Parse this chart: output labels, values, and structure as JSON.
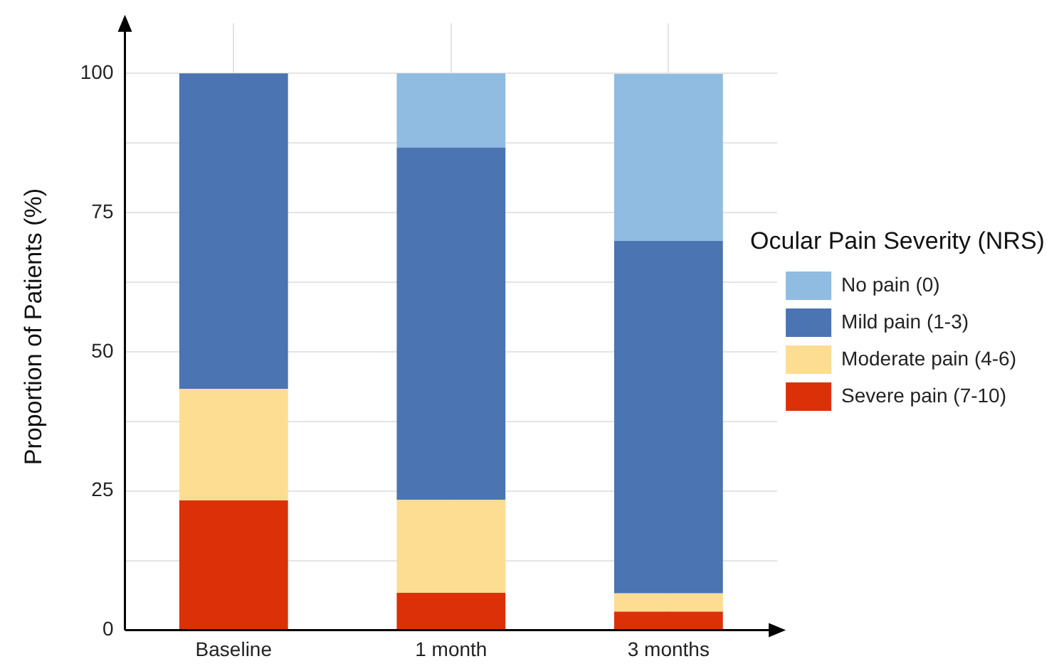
{
  "chart_data": {
    "type": "bar",
    "stacked": true,
    "ylabel": "Proportion of Patients (%)",
    "legend_title": "Ocular Pain Severity (NRS)",
    "legend": "right",
    "categories": [
      "Baseline",
      "1 month",
      "3 months"
    ],
    "series": [
      {
        "name": "Severe pain (7-10)",
        "color": "#dc3108",
        "values": [
          23.3,
          6.7,
          3.3
        ]
      },
      {
        "name": "Moderate pain (4-6)",
        "color": "#fddd92",
        "values": [
          20,
          16.7,
          3.3
        ]
      },
      {
        "name": "Mild pain (1-3)",
        "color": "#4a74b2",
        "values": [
          56.7,
          63.3,
          63.3
        ]
      },
      {
        "name": "No pain (0)",
        "color": "#8fbce0",
        "values": [
          0,
          13.3,
          30
        ]
      }
    ],
    "ylim": [
      0,
      109
    ],
    "yticks": [
      0,
      {
        "value": 12.5,
        "label": null
      },
      25,
      {
        "value": 37.5,
        "label": null
      },
      50,
      {
        "value": 62.5,
        "label": null
      },
      75,
      {
        "value": 87.5,
        "label": null
      },
      100
    ],
    "grid": true
  }
}
